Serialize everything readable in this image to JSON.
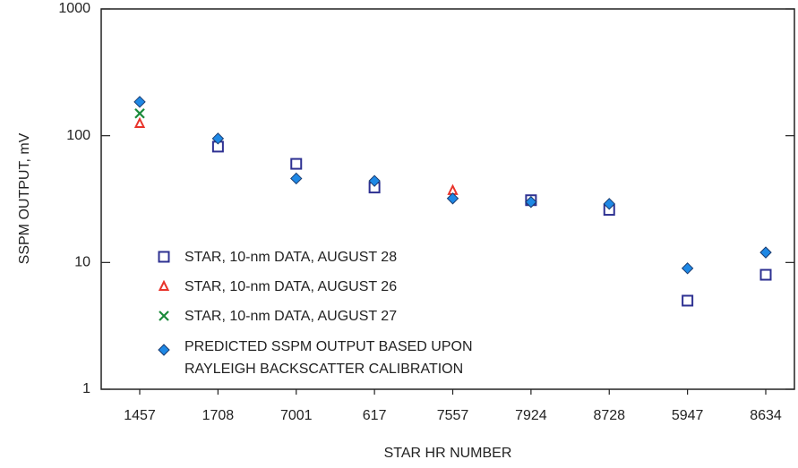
{
  "chart_data": {
    "type": "scatter",
    "x_label": "STAR HR NUMBER",
    "y_label": "SSPM  OUTPUT, mV",
    "categories": [
      "1457",
      "1708",
      "7001",
      "617",
      "7557",
      "7924",
      "8728",
      "5947",
      "8634"
    ],
    "yscale": "log",
    "ylim": [
      1,
      1000
    ],
    "yticks": [
      1,
      10,
      100,
      1000
    ],
    "series": [
      {
        "name": "STAR, 10-nm DATA, AUGUST 28",
        "marker": "square",
        "color": "#2e3192",
        "values": [
          null,
          82,
          60,
          39,
          null,
          31,
          26,
          5,
          8
        ]
      },
      {
        "name": "STAR, 10-nm DATA, AUGUST 26",
        "marker": "triangle",
        "color": "#e8332a",
        "values": [
          125,
          null,
          null,
          null,
          37,
          null,
          null,
          null,
          null
        ]
      },
      {
        "name": "STAR, 10-nm DATA, AUGUST 27",
        "marker": "x",
        "color": "#1a8a3a",
        "values": [
          150,
          null,
          null,
          null,
          null,
          null,
          null,
          null,
          null
        ]
      },
      {
        "name": "PREDICTED SSPM OUTPUT BASED UPON\nRAYLEIGH BACKSCATTER CALIBRATION",
        "marker": "diamond",
        "color": "#1e88e5",
        "values": [
          185,
          95,
          46,
          44,
          32,
          30,
          29,
          9,
          12
        ]
      }
    ]
  }
}
